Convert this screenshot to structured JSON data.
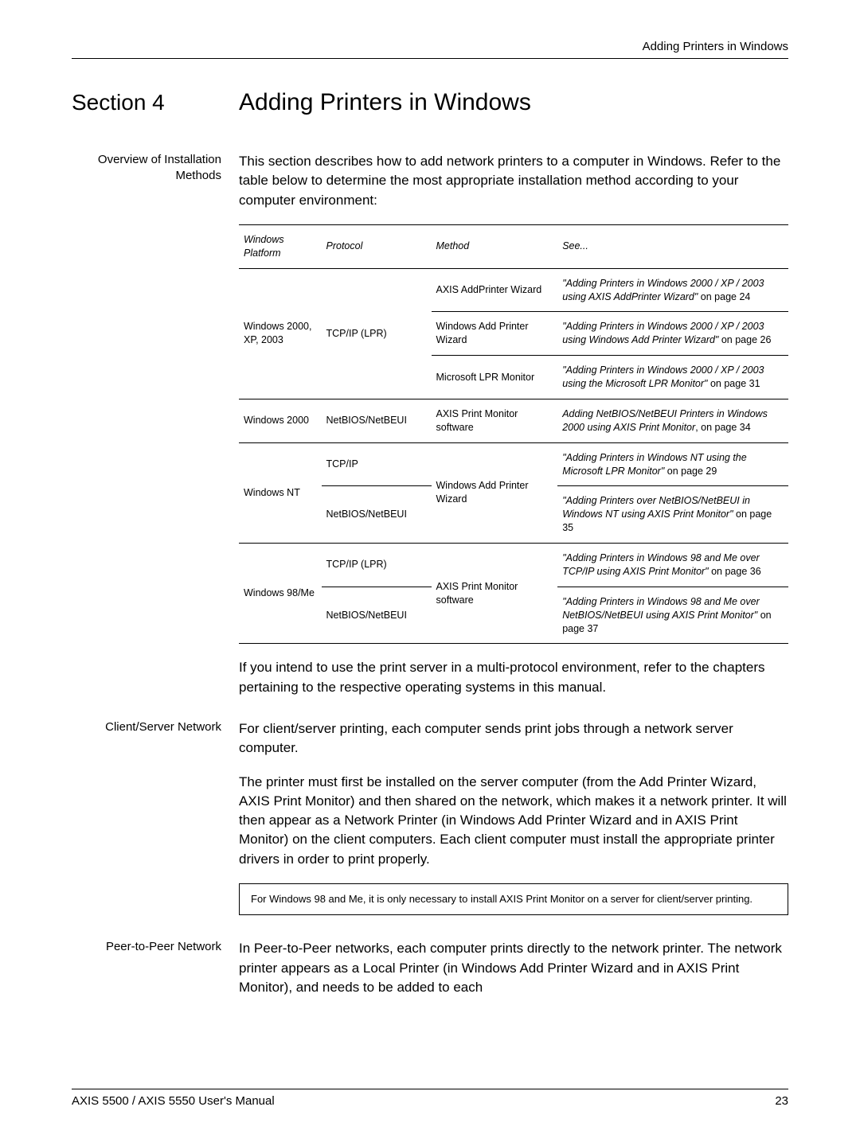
{
  "header": {
    "running_title": "Adding Printers in Windows"
  },
  "section": {
    "label": "Section 4",
    "title": "Adding Printers in Windows"
  },
  "overview": {
    "side_label": "Overview of Installation Methods",
    "intro": "This section describes how to add network printers to a computer in Windows. Refer to the table below to determine the most appropriate installation method according to your computer environment:"
  },
  "table": {
    "headers": {
      "platform": "Windows Platform",
      "protocol": "Protocol",
      "method": "Method",
      "see": "See..."
    },
    "rows": [
      {
        "platform": "Windows 2000, XP, 2003",
        "protocol": "TCP/IP (LPR)",
        "methods": [
          {
            "method": "AXIS AddPrinter Wizard",
            "see_italic": "\"Adding Printers in Windows 2000 / XP / 2003 using AXIS AddPrinter Wizard\"",
            "see_tail": " on page 24"
          },
          {
            "method": "Windows Add Printer Wizard",
            "see_italic": "\"Adding Printers in Windows 2000 / XP / 2003 using Windows Add Printer Wizard\"",
            "see_tail": " on page 26"
          },
          {
            "method": "Microsoft LPR Monitor",
            "see_italic": "\"Adding Printers in Windows 2000 / XP / 2003 using the Microsoft LPR Monitor\"",
            "see_tail": " on page 31"
          }
        ]
      },
      {
        "platform": "Windows 2000",
        "protocol": "NetBIOS/NetBEUI",
        "methods": [
          {
            "method": "AXIS Print Monitor software",
            "see_italic": "Adding NetBIOS/NetBEUI Printers in Windows 2000 using AXIS Print Monitor",
            "see_tail": ", on page 34"
          }
        ]
      },
      {
        "platform": "Windows NT",
        "subrows": [
          {
            "protocol": "TCP/IP",
            "see_italic": "\"Adding Printers in Windows NT using the Microsoft LPR Monitor\"",
            "see_tail": " on page 29"
          },
          {
            "protocol": "NetBIOS/NetBEUI",
            "see_italic": "\"Adding Printers over NetBIOS/NetBEUI in Windows NT using AXIS Print Monitor\"",
            "see_tail": " on page 35"
          }
        ],
        "method_shared": "Windows Add Printer Wizard"
      },
      {
        "platform": "Windows 98/Me",
        "subrows": [
          {
            "protocol": "TCP/IP (LPR)",
            "see_italic": "\"Adding Printers in Windows 98 and Me over TCP/IP using AXIS Print Monitor\"",
            "see_tail": " on page 36"
          },
          {
            "protocol": "NetBIOS/NetBEUI",
            "see_italic": "\"Adding Printers in Windows 98 and Me over NetBIOS/NetBEUI using AXIS Print Monitor\"",
            "see_tail": " on page 37"
          }
        ],
        "method_shared": "AXIS Print Monitor software"
      }
    ],
    "after": "If you intend to use the print server in a multi-protocol environment, refer to the chapters pertaining to the respective operating systems in this manual."
  },
  "client_server": {
    "side_label": "Client/Server Network",
    "para1": "For client/server printing, each computer sends print jobs through a network server computer.",
    "para2": "The printer must first be installed on the server computer (from the Add Printer Wizard, AXIS Print Monitor) and then shared on the network, which makes it a network printer. It will then appear as a Network Printer (in Windows Add Printer Wizard and in AXIS Print Monitor) on the client computers. Each client computer must install the appropriate printer drivers in order to print properly.",
    "note": "For Windows 98 and Me, it is only necessary to install AXIS Print Monitor on a server for client/server printing."
  },
  "peer": {
    "side_label": "Peer-to-Peer Network",
    "para": "In Peer-to-Peer networks, each computer prints directly to the network printer. The network printer appears as a Local Printer (in Windows Add Printer Wizard and in AXIS Print Monitor), and needs to be added to each"
  },
  "footer": {
    "manual": "AXIS 5500 / AXIS 5550 User's Manual",
    "page": "23"
  }
}
